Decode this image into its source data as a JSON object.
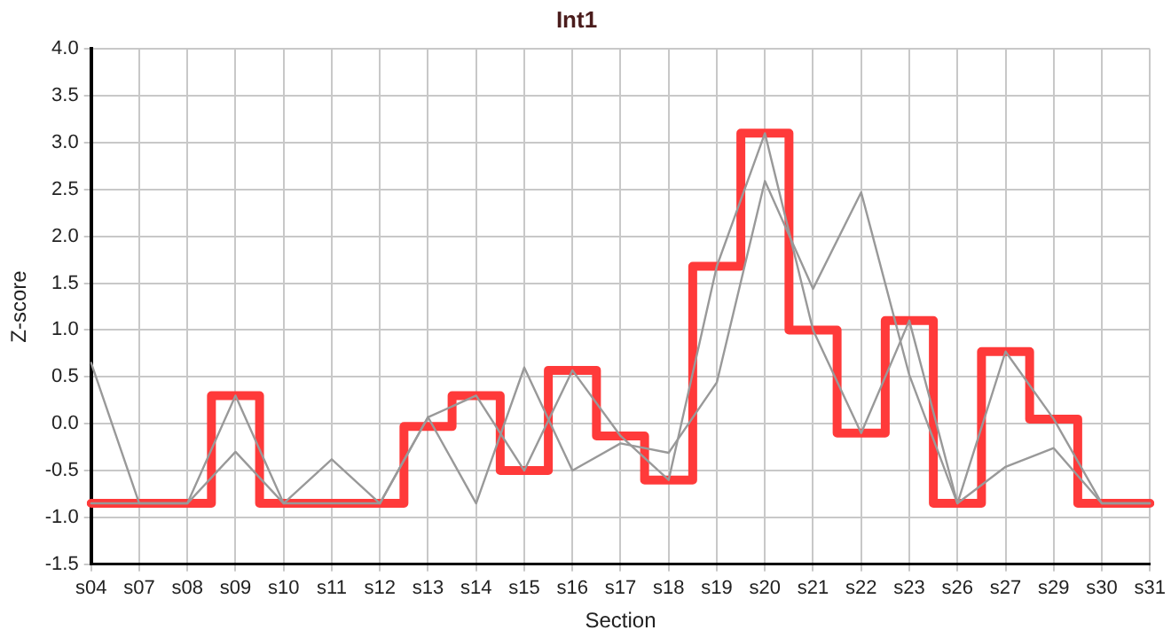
{
  "chart_data": {
    "type": "line",
    "title": "Int1",
    "xlabel": "Section",
    "ylabel": "Z-score",
    "categories": [
      "s04",
      "s07",
      "s08",
      "s09",
      "s10",
      "s11",
      "s12",
      "s13",
      "s14",
      "s15",
      "s16",
      "s17",
      "s18",
      "s19",
      "s20",
      "s21",
      "s22",
      "s23",
      "s26",
      "s27",
      "s29",
      "s30",
      "s31"
    ],
    "series": [
      {
        "color": "#999999",
        "values": [
          0.65,
          -0.85,
          -0.85,
          0.3,
          -0.85,
          -0.85,
          -0.85,
          0.07,
          0.3,
          -0.5,
          0.57,
          -0.13,
          -0.6,
          1.68,
          3.1,
          1.0,
          -0.1,
          1.1,
          -0.85,
          0.77,
          0.05,
          -0.85,
          -0.85
        ]
      },
      {
        "color": "#999999",
        "values": [
          -0.85,
          -0.85,
          -0.85,
          -0.3,
          -0.85,
          -0.38,
          -0.85,
          0.07,
          -0.85,
          0.6,
          -0.5,
          -0.21,
          -0.31,
          0.44,
          2.59,
          1.44,
          2.47,
          0.52,
          -0.85,
          -0.46,
          -0.26,
          -0.85,
          -0.85
        ]
      },
      {
        "type": "step",
        "color": "#ff3a3a",
        "values": [
          -0.85,
          -0.85,
          -0.85,
          0.3,
          -0.85,
          -0.85,
          -0.85,
          -0.03,
          0.3,
          -0.5,
          0.57,
          -0.13,
          -0.6,
          1.68,
          3.1,
          1.0,
          -0.1,
          1.1,
          -0.85,
          0.77,
          0.05,
          -0.85,
          -0.85
        ]
      }
    ],
    "ylim": [
      -1.5,
      4.0
    ],
    "yticks": [
      {
        "value": -1.5,
        "label": "-1.5"
      },
      {
        "value": -1,
        "label": "-1.0"
      },
      {
        "value": -0.5,
        "label": "-0.5"
      },
      {
        "value": 0,
        "label": "0.0"
      },
      {
        "value": 0.5,
        "label": "0.5"
      },
      {
        "value": 1,
        "label": "1.0"
      },
      {
        "value": 1.5,
        "label": "1.5"
      },
      {
        "value": 2,
        "label": "2.0"
      },
      {
        "value": 2.5,
        "label": "2.5"
      },
      {
        "value": 3,
        "label": "3.0"
      },
      {
        "value": 3.5,
        "label": "3.5"
      },
      {
        "value": 4,
        "label": "4.0"
      }
    ],
    "grid": true,
    "legend": false,
    "marker": "none",
    "line_style": "solid"
  }
}
